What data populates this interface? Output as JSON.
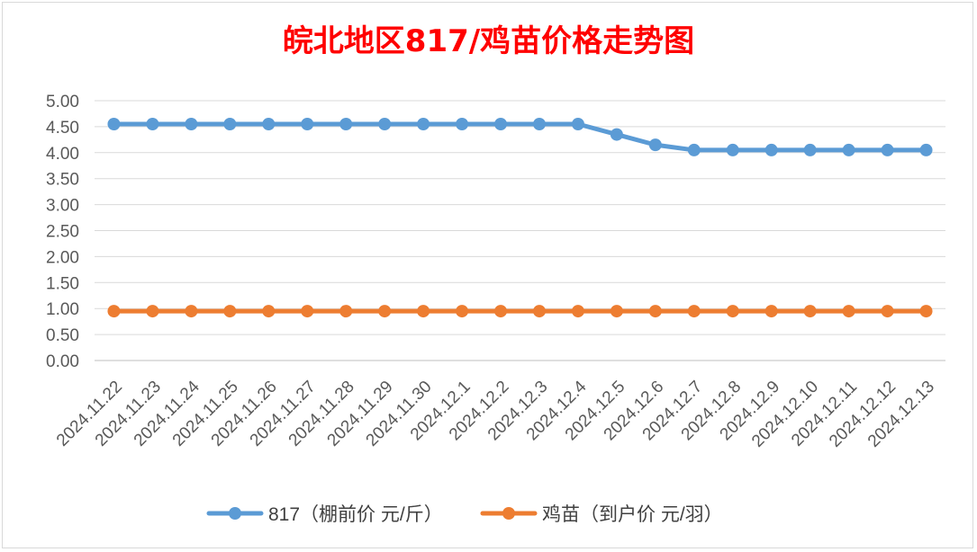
{
  "chart_data": {
    "type": "line",
    "title": "皖北地区817/鸡苗价格走势图",
    "xlabel": "",
    "ylabel": "",
    "ylim": [
      0,
      5
    ],
    "ytick_labels": [
      "0.00",
      "0.50",
      "1.00",
      "1.50",
      "2.00",
      "2.50",
      "3.00",
      "3.50",
      "4.00",
      "4.50",
      "5.00"
    ],
    "categories": [
      "2024.11.22",
      "2024.11.23",
      "2024.11.24",
      "2024.11.25",
      "2024.11.26",
      "2024.11.27",
      "2024.11.28",
      "2024.11.29",
      "2024.11.30",
      "2024.12.1",
      "2024.12.2",
      "2024.12.3",
      "2024.12.4",
      "2024.12.5",
      "2024.12.6",
      "2024.12.7",
      "2024.12.8",
      "2024.12.9",
      "2024.12.10",
      "2024.12.11",
      "2024.12.12",
      "2024.12.13"
    ],
    "series": [
      {
        "name": "817（棚前价 元/斤）",
        "color": "#5b9bd5",
        "values": [
          4.55,
          4.55,
          4.55,
          4.55,
          4.55,
          4.55,
          4.55,
          4.55,
          4.55,
          4.55,
          4.55,
          4.55,
          4.55,
          4.35,
          4.15,
          4.05,
          4.05,
          4.05,
          4.05,
          4.05,
          4.05,
          4.05
        ]
      },
      {
        "name": "鸡苗（到户价 元/羽）",
        "color": "#ed7d31",
        "values": [
          0.95,
          0.95,
          0.95,
          0.95,
          0.95,
          0.95,
          0.95,
          0.95,
          0.95,
          0.95,
          0.95,
          0.95,
          0.95,
          0.95,
          0.95,
          0.95,
          0.95,
          0.95,
          0.95,
          0.95,
          0.95,
          0.95
        ]
      }
    ],
    "grid": true,
    "legend_position": "bottom"
  }
}
